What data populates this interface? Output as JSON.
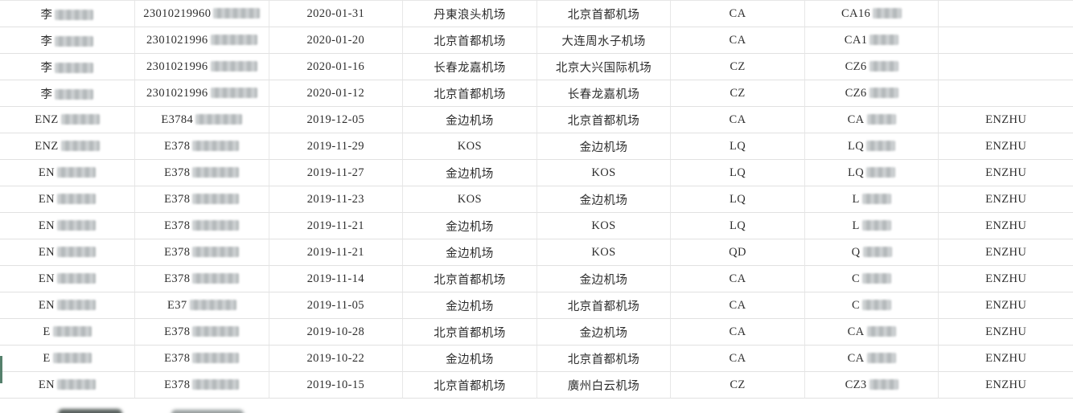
{
  "app": {
    "view": "flight-records-grid"
  },
  "theme": {
    "background": "#ffffff",
    "grid_line_color": "#e1e1e1",
    "text_color": "#2e2e2e",
    "selection_accent_green": "#55806c",
    "redaction_blur_gray": "#b8bcbe"
  },
  "table": {
    "columns": [
      {
        "key": "name"
      },
      {
        "key": "id-number"
      },
      {
        "key": "flight-date"
      },
      {
        "key": "departure-airport"
      },
      {
        "key": "arrival-airport"
      },
      {
        "key": "airline-code"
      },
      {
        "key": "flight-number"
      },
      {
        "key": "remark"
      }
    ],
    "rows": [
      {
        "cells": [
          {
            "text": "李",
            "redacted": true
          },
          {
            "text": "23010219960",
            "redacted": true
          },
          {
            "text": "2020-01-31"
          },
          {
            "text": "丹東浪头机场"
          },
          {
            "text": "北京首都机场"
          },
          {
            "text": "CA"
          },
          {
            "text": "CA16",
            "redacted": true
          },
          {
            "text": ""
          }
        ]
      },
      {
        "cells": [
          {
            "text": "李",
            "redacted": true
          },
          {
            "text": "2301021996",
            "redacted": true
          },
          {
            "text": "2020-01-20"
          },
          {
            "text": "北京首都机场"
          },
          {
            "text": "大连周水子机场"
          },
          {
            "text": "CA"
          },
          {
            "text": "CA1",
            "redacted": true
          },
          {
            "text": ""
          }
        ]
      },
      {
        "cells": [
          {
            "text": "李",
            "redacted": true
          },
          {
            "text": "2301021996",
            "redacted": true
          },
          {
            "text": "2020-01-16"
          },
          {
            "text": "长春龙嘉机场"
          },
          {
            "text": "北京大兴国际机场"
          },
          {
            "text": "CZ"
          },
          {
            "text": "CZ6",
            "redacted": true
          },
          {
            "text": ""
          }
        ]
      },
      {
        "cells": [
          {
            "text": "李",
            "redacted": true
          },
          {
            "text": "2301021996",
            "redacted": true
          },
          {
            "text": "2020-01-12"
          },
          {
            "text": "北京首都机场"
          },
          {
            "text": "长春龙嘉机场"
          },
          {
            "text": "CZ"
          },
          {
            "text": "CZ6",
            "redacted": true
          },
          {
            "text": ""
          }
        ]
      },
      {
        "cells": [
          {
            "text": "ENZ",
            "redacted": true
          },
          {
            "text": "E3784",
            "redacted": true
          },
          {
            "text": "2019-12-05"
          },
          {
            "text": "金边机场"
          },
          {
            "text": "北京首都机场"
          },
          {
            "text": "CA"
          },
          {
            "text": "CA",
            "redacted": true
          },
          {
            "text": "ENZHU"
          }
        ]
      },
      {
        "cells": [
          {
            "text": "ENZ",
            "redacted": true
          },
          {
            "text": "E378",
            "redacted": true
          },
          {
            "text": "2019-11-29"
          },
          {
            "text": "KOS"
          },
          {
            "text": "金边机场"
          },
          {
            "text": "LQ"
          },
          {
            "text": "LQ",
            "redacted": true
          },
          {
            "text": "ENZHU"
          }
        ]
      },
      {
        "cells": [
          {
            "text": "EN",
            "redacted": true
          },
          {
            "text": "E378",
            "redacted": true
          },
          {
            "text": "2019-11-27"
          },
          {
            "text": "金边机场"
          },
          {
            "text": "KOS"
          },
          {
            "text": "LQ"
          },
          {
            "text": "LQ",
            "redacted": true
          },
          {
            "text": "ENZHU"
          }
        ]
      },
      {
        "cells": [
          {
            "text": "EN",
            "redacted": true
          },
          {
            "text": "E378",
            "redacted": true
          },
          {
            "text": "2019-11-23"
          },
          {
            "text": "KOS"
          },
          {
            "text": "金边机场"
          },
          {
            "text": "LQ"
          },
          {
            "text": "L",
            "redacted": true
          },
          {
            "text": "ENZHU"
          }
        ]
      },
      {
        "cells": [
          {
            "text": "EN",
            "redacted": true
          },
          {
            "text": "E378",
            "redacted": true
          },
          {
            "text": "2019-11-21"
          },
          {
            "text": "金边机场"
          },
          {
            "text": "KOS"
          },
          {
            "text": "LQ"
          },
          {
            "text": "L",
            "redacted": true
          },
          {
            "text": "ENZHU"
          }
        ]
      },
      {
        "cells": [
          {
            "text": "EN",
            "redacted": true
          },
          {
            "text": "E378",
            "redacted": true
          },
          {
            "text": "2019-11-21"
          },
          {
            "text": "金边机场"
          },
          {
            "text": "KOS"
          },
          {
            "text": "QD"
          },
          {
            "text": "Q",
            "redacted": true
          },
          {
            "text": "ENZHU"
          }
        ]
      },
      {
        "cells": [
          {
            "text": "EN",
            "redacted": true
          },
          {
            "text": "E378",
            "redacted": true
          },
          {
            "text": "2019-11-14"
          },
          {
            "text": "北京首都机场"
          },
          {
            "text": "金边机场"
          },
          {
            "text": "CA"
          },
          {
            "text": "C",
            "redacted": true
          },
          {
            "text": "ENZHU"
          }
        ]
      },
      {
        "cells": [
          {
            "text": "EN",
            "redacted": true
          },
          {
            "text": "E37",
            "redacted": true
          },
          {
            "text": "2019-11-05"
          },
          {
            "text": "金边机场"
          },
          {
            "text": "北京首都机场"
          },
          {
            "text": "CA"
          },
          {
            "text": "C",
            "redacted": true
          },
          {
            "text": "ENZHU"
          }
        ]
      },
      {
        "cells": [
          {
            "text": "E",
            "redacted": true
          },
          {
            "text": "E378",
            "redacted": true
          },
          {
            "text": "2019-10-28"
          },
          {
            "text": "北京首都机场"
          },
          {
            "text": "金边机场"
          },
          {
            "text": "CA"
          },
          {
            "text": "CA",
            "redacted": true
          },
          {
            "text": "ENZHU"
          }
        ]
      },
      {
        "cells": [
          {
            "text": "E",
            "redacted": true
          },
          {
            "text": "E378",
            "redacted": true
          },
          {
            "text": "2019-10-22"
          },
          {
            "text": "金边机场"
          },
          {
            "text": "北京首都机场"
          },
          {
            "text": "CA"
          },
          {
            "text": "CA",
            "redacted": true
          },
          {
            "text": "ENZHU"
          }
        ]
      },
      {
        "cells": [
          {
            "text": "EN",
            "redacted": true
          },
          {
            "text": "E378",
            "redacted": true
          },
          {
            "text": "2019-10-15"
          },
          {
            "text": "北京首都机场"
          },
          {
            "text": "廣州白云机场"
          },
          {
            "text": "CZ"
          },
          {
            "text": "CZ3",
            "redacted": true
          },
          {
            "text": "ENZHU"
          }
        ]
      }
    ]
  },
  "selection": {
    "row_index": 13
  },
  "partial_next_row": {
    "visible": true,
    "note": "blurred row cut off at bottom edge"
  }
}
